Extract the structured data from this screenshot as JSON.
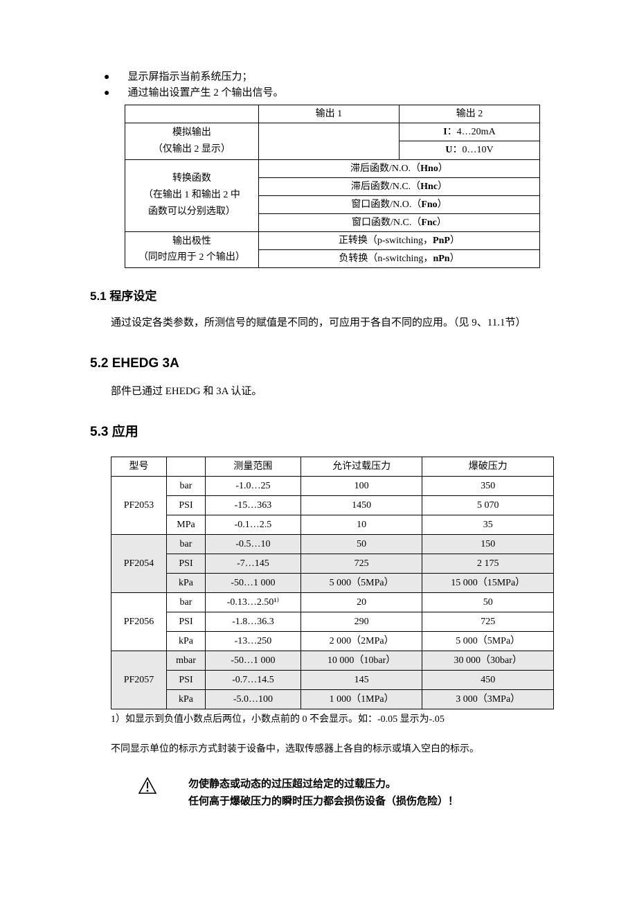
{
  "bullets": {
    "b1": "显示屏指示当前系统压力；",
    "b2": "通过输出设置产生 2 个输出信号。"
  },
  "table1": {
    "hdr_out1": "输出 1",
    "hdr_out2": "输出 2",
    "r1_label_l1": "模拟输出",
    "r1_label_l2": "（仅输出 2 显示）",
    "r1_out2_l1": "I：4…20mA",
    "r1_out2_l2": "U：0…10V",
    "r2_label_l1": "转换函数",
    "r2_label_l2": "（在输出 1 和输出 2 中",
    "r2_label_l3": "函数可以分别选取）",
    "r2_v1": "滞后函数/N.O.（Hno）",
    "r2_v2": "滞后函数/N.C.（Hnc）",
    "r2_v3": "窗口函数/N.O.（Fno）",
    "r2_v4": "窗口函数/N.C.（Fnc）",
    "r3_label_l1": "输出极性",
    "r3_label_l2": "（同时应用于 2 个输出）",
    "r3_v1": "正转换（p-switching，PnP）",
    "r3_v2": "负转换（n-switching，nPn）"
  },
  "s51": {
    "title": "5.1  程序设定",
    "body": "通过设定各类参数，所测信号的赋值是不同的，可应用于各自不同的应用。（见 9、11.1节）"
  },
  "s52": {
    "title": "5.2  EHEDG 3A",
    "body": "部件已通过 EHEDG 和 3A 认证。"
  },
  "s53": {
    "title": "5.3  应用"
  },
  "table2": {
    "h_model": "型号",
    "h_blank": "",
    "h_range": "测量范围",
    "h_over": "允许过载压力",
    "h_burst": "爆破压力",
    "rows": [
      {
        "model": "PF2053",
        "shaded": false,
        "lines": [
          {
            "unit": "bar",
            "range": "-1.0…25",
            "over": "100",
            "burst": "350"
          },
          {
            "unit": "PSI",
            "range": "-15…363",
            "over": "1450",
            "burst": "5 070"
          },
          {
            "unit": "MPa",
            "range": "-0.1…2.5",
            "over": "10",
            "burst": "35"
          }
        ]
      },
      {
        "model": "PF2054",
        "shaded": true,
        "lines": [
          {
            "unit": "bar",
            "range": "-0.5…10",
            "over": "50",
            "burst": "150"
          },
          {
            "unit": "PSI",
            "range": "-7…145",
            "over": "725",
            "burst": "2 175"
          },
          {
            "unit": "kPa",
            "range": "-50…1 000",
            "over": "5 000（5MPa）",
            "burst": "15 000（15MPa）"
          }
        ]
      },
      {
        "model": "PF2056",
        "shaded": false,
        "lines": [
          {
            "unit": "bar",
            "range": "-0.13…2.50¹⁾",
            "over": "20",
            "burst": "50"
          },
          {
            "unit": "PSI",
            "range": "-1.8…36.3",
            "over": "290",
            "burst": "725"
          },
          {
            "unit": "kPa",
            "range": "-13…250",
            "over": "2 000（2MPa）",
            "burst": "5 000（5MPa）"
          }
        ]
      },
      {
        "model": "PF2057",
        "shaded": true,
        "lines": [
          {
            "unit": "mbar",
            "range": "-50…1 000",
            "over": "10 000（10bar）",
            "burst": "30 000（30bar）"
          },
          {
            "unit": "PSI",
            "range": "-0.7…14.5",
            "over": "145",
            "burst": "450"
          },
          {
            "unit": "kPa",
            "range": "-5.0…100",
            "over": "1 000（1MPa）",
            "burst": "3 000（3MPa）"
          }
        ]
      }
    ]
  },
  "footnote": "1）如显示到负值小数点后两位，小数点前的 0 不会显示。如：-0.05 显示为-.05",
  "note": "不同显示单位的标示方式封装于设备中，选取传感器上各自的标示或填入空白的标示。",
  "warning": {
    "l1": "勿使静态或动态的过压超过给定的过载压力。",
    "l2": "任何高于爆破压力的瞬时压力都会损伤设备（损伤危险）！"
  },
  "colors": {
    "shade": "#e8e8e8"
  }
}
